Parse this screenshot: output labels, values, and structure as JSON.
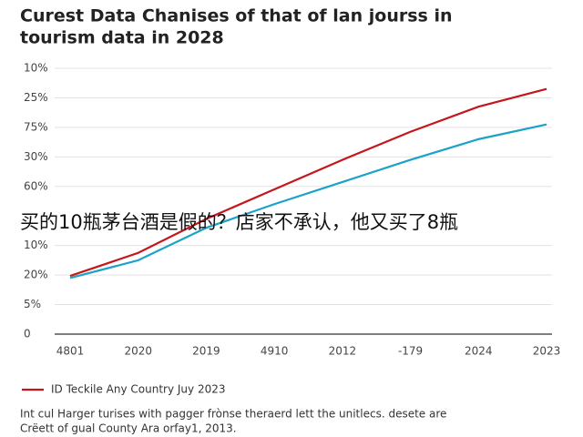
{
  "chart_data": {
    "type": "line",
    "title_lines": [
      "Curest Data Chanises of that of lan jourss in",
      "tourism data in 2028"
    ],
    "categories": [
      "4801",
      "2020",
      "2019",
      "4910",
      "2012",
      "-179",
      "2024",
      "2023"
    ],
    "series": [
      {
        "name": "ID Teckile Any Country Juy 2023",
        "color": "#c4161c",
        "values": [
          1.97,
          2.75,
          3.9,
          4.9,
          5.9,
          6.85,
          7.7,
          8.3
        ]
      },
      {
        "color": "#1aa3c8",
        "values": [
          1.9,
          2.5,
          3.6,
          4.4,
          5.15,
          5.9,
          6.6,
          7.1
        ]
      }
    ],
    "ylim": [
      0,
      9
    ],
    "yticks": [
      {
        "value": 9,
        "label": "10%"
      },
      {
        "value": 8,
        "label": "25%"
      },
      {
        "value": 7,
        "label": "75%"
      },
      {
        "value": 6,
        "label": "30%"
      },
      {
        "value": 5,
        "label": "60%"
      },
      {
        "value": 3,
        "label": "10%"
      },
      {
        "value": 2,
        "label": "20%"
      },
      {
        "value": 1,
        "label": "5%"
      },
      0
    ],
    "grid": true,
    "notes": [
      "Int cul Harger turises with pagger frònse theraerd lett the unitlecs. desete are",
      "Crëett of gual County Ara orfay1, 2013."
    ],
    "overlay_text": "买的10瓶茅台酒是假的？店家不承认，他又买了8瓶"
  }
}
